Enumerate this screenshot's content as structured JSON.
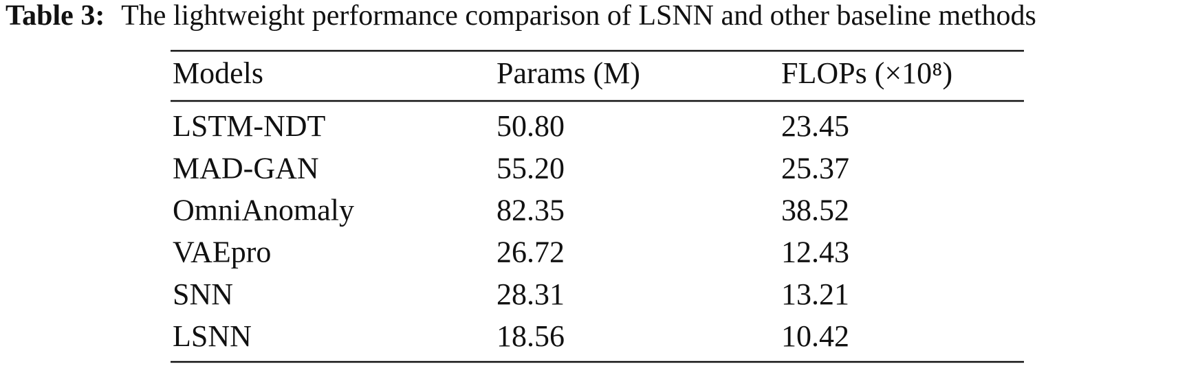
{
  "caption": {
    "label": "Table 3:",
    "text": "The lightweight performance comparison of LSNN and other baseline methods"
  },
  "table": {
    "columns": [
      "Models",
      "Params (M)",
      "FLOPs (×10⁸)"
    ],
    "rows": [
      [
        "LSTM-NDT",
        "50.80",
        "23.45"
      ],
      [
        "MAD-GAN",
        "55.20",
        "25.37"
      ],
      [
        "OmniAnomaly",
        "82.35",
        "38.52"
      ],
      [
        "VAEpro",
        "26.72",
        "12.43"
      ],
      [
        "SNN",
        "28.31",
        "13.21"
      ],
      [
        "LSNN",
        "18.56",
        "10.42"
      ]
    ]
  }
}
